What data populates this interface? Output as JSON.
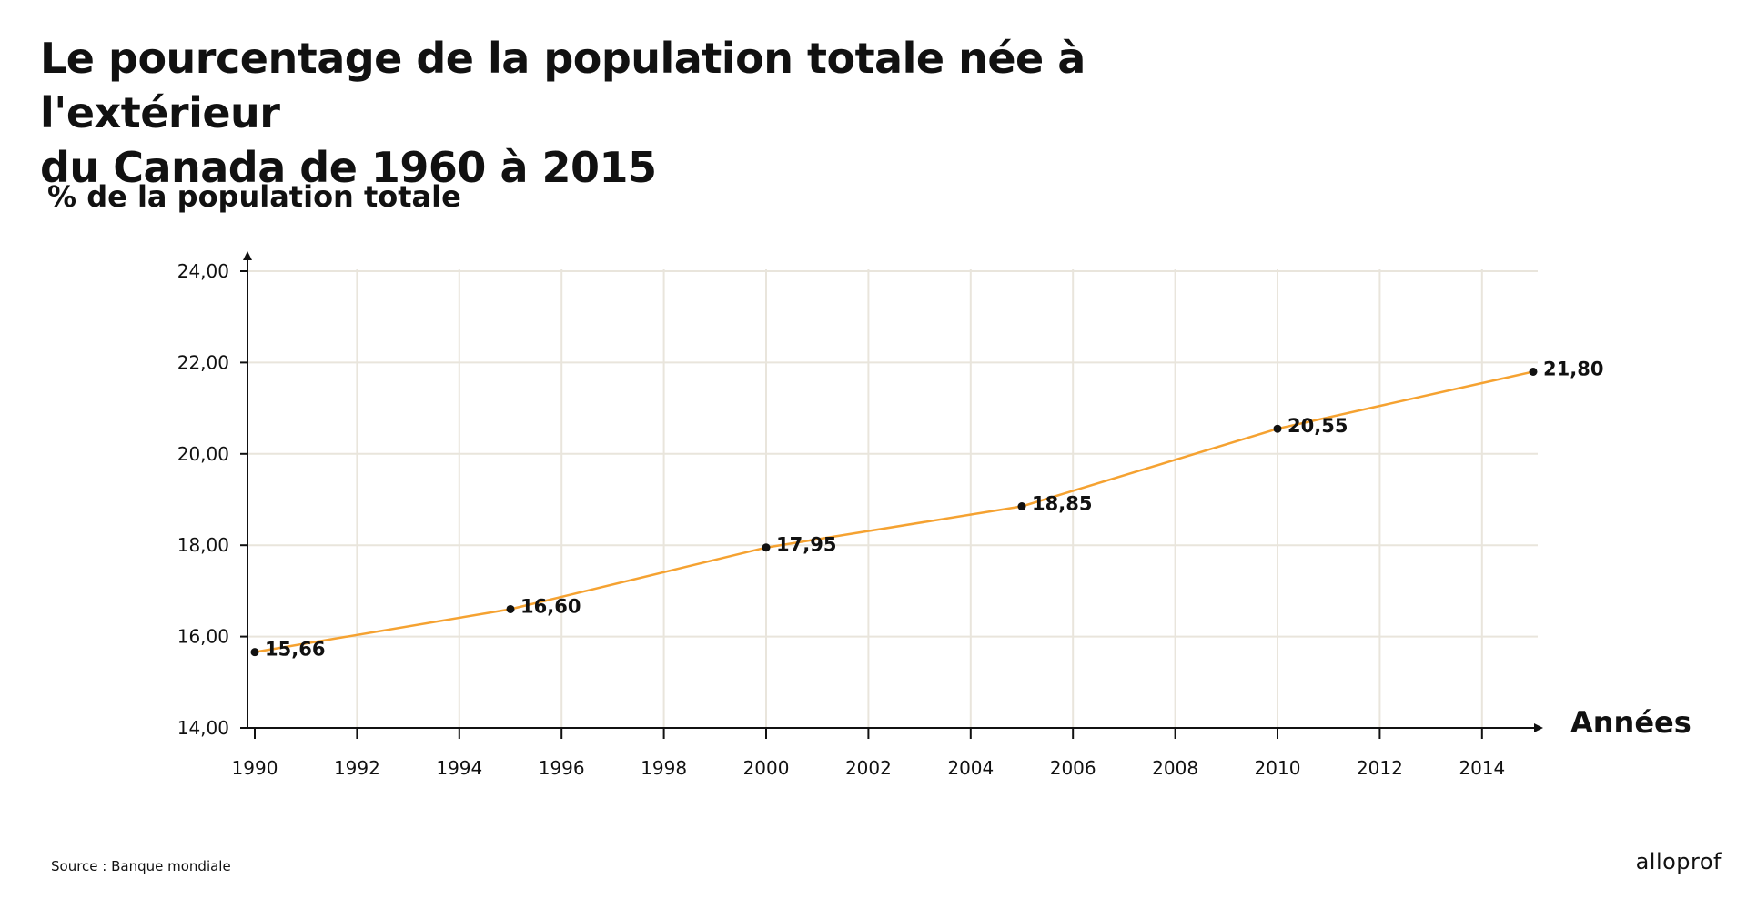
{
  "chart_data": {
    "type": "line",
    "title_lines": [
      "Le pourcentage de la population totale née à l'extérieur",
      "du Canada de 1960 à 2015"
    ],
    "ylabel": "% de la population totale",
    "xlabel": "Années",
    "ylim": [
      14,
      24
    ],
    "xlim": [
      1990,
      2015
    ],
    "y_ticks": [
      "14,00",
      "16,00",
      "18,00",
      "20,00",
      "22,00",
      "24,00"
    ],
    "x_ticks": [
      "1990",
      "1992",
      "1994",
      "1996",
      "1998",
      "2000",
      "2002",
      "2004",
      "2006",
      "2008",
      "2010",
      "2012",
      "2014"
    ],
    "grid": true,
    "series": [
      {
        "x": [
          1990,
          1995,
          2000,
          2005,
          2010,
          2015
        ],
        "y": [
          15.66,
          16.6,
          17.95,
          18.85,
          20.55,
          21.8
        ],
        "labels": [
          "15,66",
          "16,60",
          "17,95",
          "18,85",
          "20,55",
          "21,80"
        ],
        "color": "#f5a231"
      }
    ],
    "colors": {
      "line": "#f5a231",
      "grid": "#e9e5dc",
      "axis": "#111111",
      "point": "#111111"
    }
  },
  "footer": {
    "source": "Source : Banque mondiale",
    "logo": "alloprof"
  }
}
